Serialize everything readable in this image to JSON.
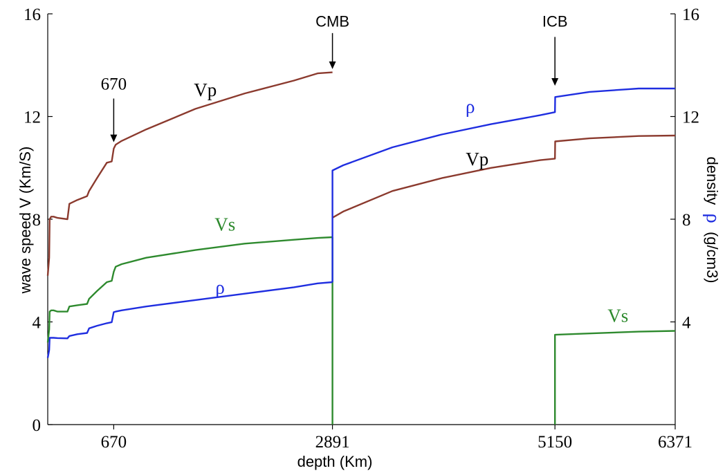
{
  "chart_data": {
    "type": "line",
    "xlabel": "depth  (Km)",
    "ylabel_left": "wave speed V (Km/S)",
    "ylabel_right_prefix": "density",
    "ylabel_right_symbol": "ρ",
    "ylabel_right_units": "(g/cm3)",
    "xlim": [
      0,
      6371
    ],
    "ylim_left": [
      0,
      16
    ],
    "ylim_right": [
      0,
      16
    ],
    "x_ticks": [
      670,
      2891,
      5150,
      6371
    ],
    "x_tick_labels": [
      "670",
      "2891",
      "5150",
      "6371"
    ],
    "y_left_ticks": [
      0,
      4,
      8,
      12,
      16
    ],
    "y_left_tick_labels": [
      "0",
      "4",
      "8",
      "12",
      "16"
    ],
    "y_right_ticks": [
      4,
      8,
      12,
      16
    ],
    "y_right_tick_labels": [
      "4",
      "8",
      "12",
      "16"
    ],
    "grid": false,
    "series": [
      {
        "key": "vp",
        "name": "Vp",
        "color": "#8b3a2e",
        "segments": [
          {
            "x": [
              0,
              15,
              20,
              35,
              60,
              100,
              200,
              220,
              300,
              400,
              420,
              500,
              600,
              650,
              670,
              690,
              750,
              1000,
              1500,
              2000,
              2500,
              2740,
              2891
            ],
            "y": [
              5.8,
              6.5,
              8.0,
              8.1,
              8.1,
              8.05,
              8.0,
              8.6,
              8.75,
              8.9,
              9.1,
              9.6,
              10.2,
              10.25,
              10.75,
              10.9,
              11.05,
              11.5,
              12.3,
              12.9,
              13.4,
              13.68,
              13.72
            ]
          },
          {
            "x": [
              2891,
              3000,
              3500,
              4000,
              4500,
              5000,
              5150,
              5152,
              5500,
              6000,
              6371
            ],
            "y": [
              8.06,
              8.3,
              9.1,
              9.6,
              10.0,
              10.3,
              10.36,
              11.03,
              11.15,
              11.24,
              11.26
            ]
          }
        ],
        "labels": [
          {
            "text": "Vp",
            "x": 1600,
            "y": 12.8
          },
          {
            "text": "Vp",
            "x": 4360,
            "y": 10.1
          }
        ]
      },
      {
        "key": "vs",
        "name": "Vs",
        "color": "#2e8a2e",
        "segments": [
          {
            "x": [
              0,
              15,
              20,
              35,
              60,
              100,
              200,
              220,
              300,
              400,
              420,
              500,
              600,
              650,
              670,
              690,
              750,
              1000,
              1500,
              2000,
              2500,
              2740,
              2891
            ],
            "y": [
              3.2,
              3.7,
              4.4,
              4.45,
              4.45,
              4.4,
              4.4,
              4.6,
              4.65,
              4.7,
              4.9,
              5.2,
              5.55,
              5.6,
              5.95,
              6.15,
              6.25,
              6.5,
              6.8,
              7.05,
              7.2,
              7.27,
              7.3
            ]
          },
          {
            "x": [
              2891,
              2891
            ],
            "y": [
              7.3,
              0
            ]
          },
          {
            "x": [
              5150,
              5150,
              5500,
              6000,
              6371
            ],
            "y": [
              0,
              3.5,
              3.55,
              3.62,
              3.65
            ]
          }
        ],
        "labels": [
          {
            "text": "Vs",
            "x": 1800,
            "y": 7.55
          },
          {
            "text": "Vs",
            "x": 5790,
            "y": 4.0
          }
        ]
      },
      {
        "key": "rho",
        "name": "ρ",
        "color": "#1f2ee0",
        "segments": [
          {
            "x": [
              0,
              15,
              20,
              35,
              60,
              100,
              200,
              220,
              300,
              400,
              420,
              500,
              600,
              650,
              670,
              690,
              750,
              1000,
              1500,
              2000,
              2500,
              2740,
              2891
            ],
            "y": [
              2.6,
              2.9,
              3.38,
              3.38,
              3.38,
              3.37,
              3.36,
              3.45,
              3.52,
              3.57,
              3.75,
              3.85,
              3.95,
              3.99,
              4.38,
              4.4,
              4.45,
              4.6,
              4.85,
              5.1,
              5.35,
              5.5,
              5.55
            ]
          },
          {
            "x": [
              2891,
              2891,
              3000,
              3500,
              4000,
              4500,
              5000,
              5150,
              5152,
              5500,
              6000,
              6371
            ],
            "y": [
              5.55,
              9.9,
              10.1,
              10.8,
              11.3,
              11.7,
              12.05,
              12.17,
              12.76,
              12.96,
              13.09,
              13.09
            ]
          }
        ],
        "labels": [
          {
            "text": "ρ",
            "x": 1750,
            "y": 5.1
          },
          {
            "text": "ρ",
            "x": 4290,
            "y": 12.15
          }
        ]
      }
    ],
    "annotations": [
      {
        "text": "670",
        "x": 670,
        "label_y": 13.05,
        "arrow_from": 12.7,
        "arrow_to": 11.0
      },
      {
        "text": "CMB",
        "x": 2891,
        "label_y": 15.5,
        "arrow_from": 15.25,
        "arrow_to": 13.85
      },
      {
        "text": "ICB",
        "x": 5150,
        "label_y": 15.5,
        "arrow_from": 15.1,
        "arrow_to": 13.2
      }
    ]
  }
}
